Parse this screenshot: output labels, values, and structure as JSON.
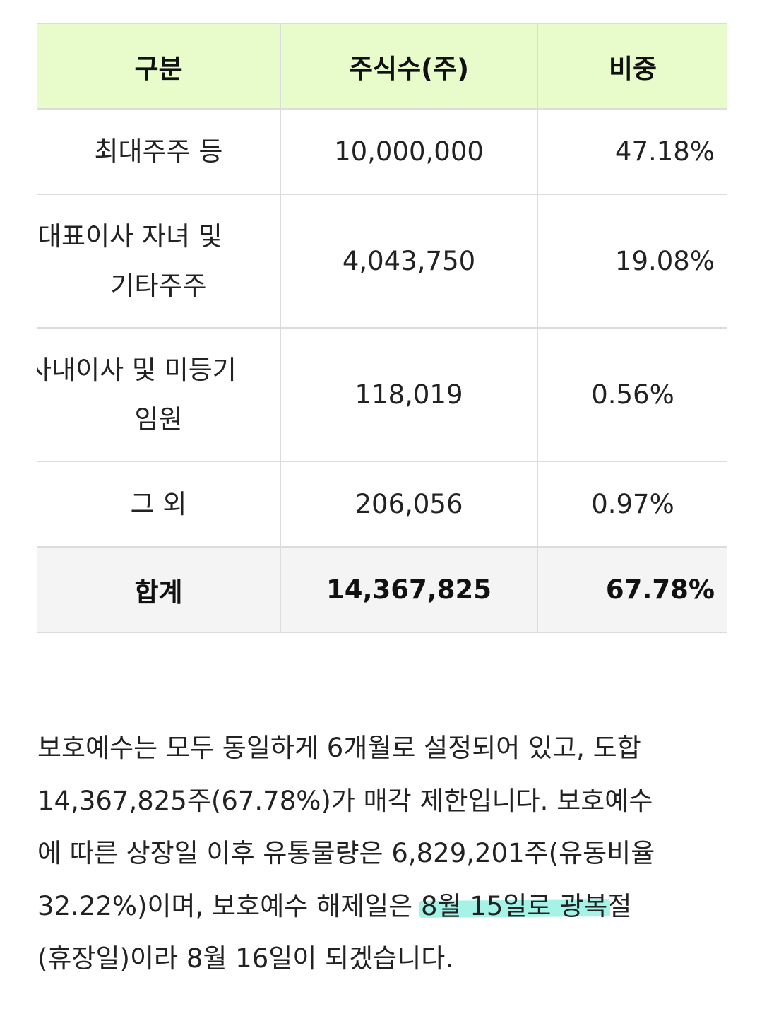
{
  "table": {
    "headers": [
      "구분",
      "주식수(주)",
      "비중"
    ],
    "rows": [
      {
        "name_lines": [
          "최대주주 등"
        ],
        "shares": "10,000,000",
        "ratio": "47.18%"
      },
      {
        "name_lines": [
          "대표이사 자녀 및",
          "기타주주"
        ],
        "shares": "4,043,750",
        "ratio": "19.08%"
      },
      {
        "name_lines": [
          "사내이사 및 미등기",
          "임원"
        ],
        "shares": "118,019",
        "ratio": "0.56%"
      },
      {
        "name_lines": [
          "그 외"
        ],
        "shares": "206,056",
        "ratio": "0.97%"
      }
    ],
    "total": {
      "name": "합계",
      "shares": "14,367,825",
      "ratio": "67.78%"
    },
    "colors": {
      "header_bg": "#e7fbcb",
      "total_bg": "#f4f4f4",
      "border": "#dcdcdc"
    }
  },
  "paragraph": {
    "lines": [
      "보호예수는 모두 동일하게 6개월로 설정되어 있고, 도합",
      "14,367,825주(67.78%)가 매각 제한입니다. 보호예수",
      "에 따른 상장일 이후 유통물량은 6,829,201주(유동비율"
    ],
    "line4_before": "32.22%)이며, 보호예수 해제일은 ",
    "line4_highlight": "8월 15일로 광복",
    "line4_after": "절",
    "line5": "(휴장일)이라 8월 16일이 되겠습니다.",
    "highlight_color": "#a5f2e6"
  }
}
